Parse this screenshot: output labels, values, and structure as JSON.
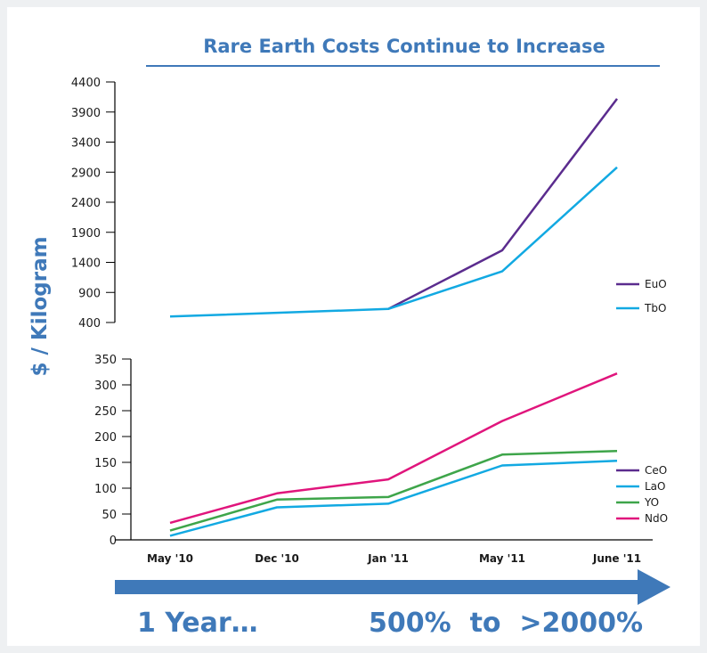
{
  "chart_data": {
    "type": "line",
    "title": "Rare Earth Costs Continue to Increase",
    "ylabel": "$ / Kilogram",
    "categories": [
      "May '10",
      "Dec '10",
      "Jan '11",
      "May '11",
      "June '11"
    ],
    "panels": [
      {
        "name": "upper",
        "ylim": [
          400,
          4400
        ],
        "yticks": [
          "4400",
          "3900",
          "3400",
          "2900",
          "2400",
          "1900",
          "1400",
          "900",
          "400"
        ],
        "series": [
          {
            "name": "EuO",
            "color": "#5b2c8e",
            "values": [
              null,
              null,
              625,
              1600,
              4120
            ]
          },
          {
            "name": "TbO",
            "color": "#12a9e2",
            "values": [
              500,
              null,
              625,
              1250,
              2980
            ]
          }
        ]
      },
      {
        "name": "lower",
        "ylim": [
          0,
          350
        ],
        "yticks": [
          "350",
          "300",
          "250",
          "200",
          "150",
          "100",
          "50",
          "0"
        ],
        "series": [
          {
            "name": "CeO",
            "color": "#5b2c8e",
            "values": [
              null,
              null,
              null,
              null,
              null
            ]
          },
          {
            "name": "LaO",
            "color": "#12a9e2",
            "values": [
              8,
              63,
              70,
              144,
              153
            ]
          },
          {
            "name": "YO",
            "color": "#3ea54a",
            "values": [
              18,
              78,
              83,
              165,
              172
            ]
          },
          {
            "name": "NdO",
            "color": "#e0157c",
            "values": [
              33,
              90,
              117,
              230,
              322
            ]
          }
        ]
      }
    ],
    "arrow": {
      "color": "#3f79b9"
    },
    "bottom_text": {
      "left": "1 Year…",
      "right": "500%  to  >2000%"
    }
  }
}
